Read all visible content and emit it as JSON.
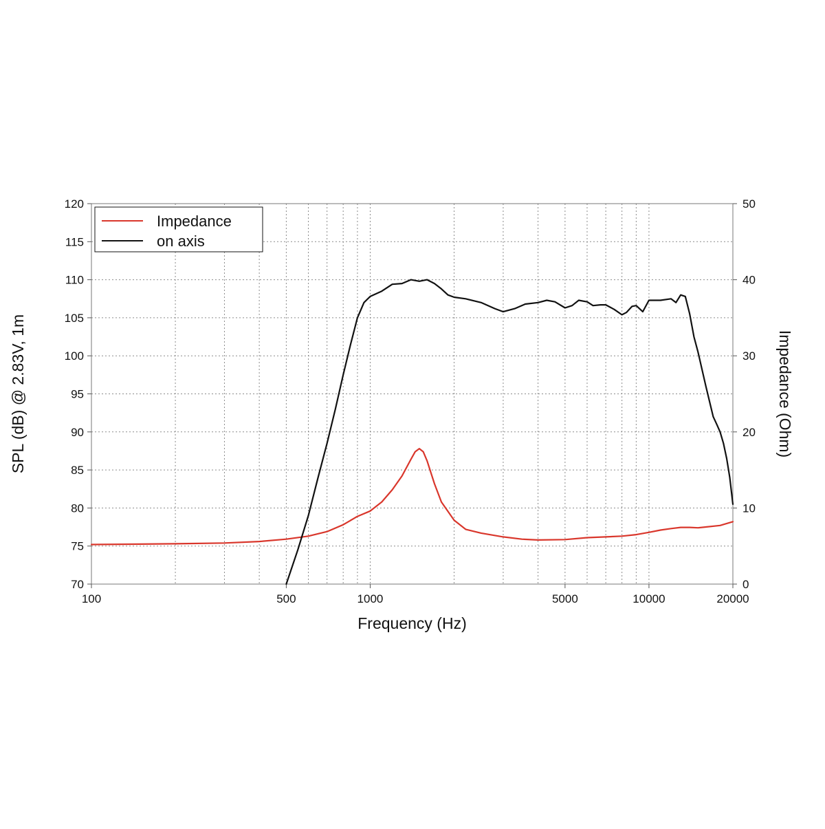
{
  "chart_data": {
    "type": "line",
    "title": "",
    "xlabel": "Frequency (Hz)",
    "ylabel": "SPL (dB) @ 2.83V, 1m",
    "y2label": "Impedance (Ohm)",
    "x_scale": "log",
    "xlim": [
      100,
      20000
    ],
    "ylim": [
      70,
      120
    ],
    "y2lim": [
      0,
      50
    ],
    "x_ticks": [
      100,
      500,
      1000,
      5000,
      10000,
      20000
    ],
    "x_tick_labels": [
      "100",
      "500",
      "1000",
      "5000",
      "10000",
      "20000"
    ],
    "y_ticks": [
      70,
      75,
      80,
      85,
      90,
      95,
      100,
      105,
      110,
      115,
      120
    ],
    "y_tick_labels": [
      "70",
      "75",
      "80",
      "85",
      "90",
      "95",
      "100",
      "105",
      "110",
      "115",
      "120"
    ],
    "y2_ticks": [
      0,
      10,
      20,
      30,
      40,
      50
    ],
    "y2_tick_labels": [
      "0",
      "10",
      "20",
      "30",
      "40",
      "50"
    ],
    "grid": true,
    "legend_position": "top-left",
    "series": [
      {
        "name": "Impedance",
        "axis": "right",
        "color": "#d9362b",
        "x": [
          100,
          150,
          200,
          300,
          400,
          500,
          600,
          700,
          800,
          900,
          1000,
          1100,
          1200,
          1300,
          1400,
          1450,
          1500,
          1550,
          1600,
          1700,
          1800,
          2000,
          2200,
          2500,
          3000,
          3500,
          4000,
          5000,
          6000,
          7000,
          8000,
          9000,
          10000,
          11000,
          12000,
          13000,
          14000,
          15000,
          16000,
          18000,
          20000
        ],
        "y": [
          5.2,
          5.25,
          5.3,
          5.4,
          5.6,
          5.9,
          6.3,
          6.9,
          7.8,
          8.9,
          9.6,
          10.8,
          12.4,
          14.2,
          16.4,
          17.4,
          17.8,
          17.4,
          16.2,
          13.2,
          10.8,
          8.4,
          7.2,
          6.7,
          6.2,
          5.9,
          5.8,
          5.85,
          6.1,
          6.2,
          6.3,
          6.5,
          6.8,
          7.1,
          7.3,
          7.45,
          7.45,
          7.4,
          7.5,
          7.7,
          8.2
        ]
      },
      {
        "name": "on axis",
        "axis": "left",
        "color": "#111111",
        "x": [
          500,
          550,
          600,
          650,
          700,
          750,
          800,
          850,
          900,
          950,
          1000,
          1100,
          1200,
          1300,
          1400,
          1500,
          1600,
          1700,
          1800,
          1900,
          2000,
          2200,
          2500,
          2800,
          3000,
          3300,
          3600,
          4000,
          4300,
          4600,
          5000,
          5300,
          5600,
          6000,
          6300,
          6700,
          7000,
          7500,
          8000,
          8300,
          8700,
          9000,
          9500,
          10000,
          11000,
          12000,
          12500,
          13000,
          13500,
          14000,
          14500,
          15000,
          16000,
          17000,
          17500,
          18000,
          18500,
          19000,
          19500,
          20000
        ],
        "y": [
          70.0,
          74.5,
          79.0,
          84.0,
          88.5,
          93.0,
          97.5,
          101.5,
          105.0,
          107.0,
          107.8,
          108.5,
          109.4,
          109.5,
          110.0,
          109.8,
          110.0,
          109.5,
          108.8,
          108.0,
          107.7,
          107.5,
          107.0,
          106.2,
          105.8,
          106.2,
          106.8,
          107.0,
          107.3,
          107.1,
          106.3,
          106.6,
          107.3,
          107.1,
          106.6,
          106.7,
          106.7,
          106.1,
          105.4,
          105.7,
          106.5,
          106.6,
          105.8,
          107.3,
          107.3,
          107.5,
          107.0,
          108.0,
          107.8,
          105.5,
          102.5,
          100.5,
          96.0,
          92.0,
          91.0,
          90.0,
          88.5,
          86.5,
          84.0,
          80.5
        ]
      }
    ]
  }
}
